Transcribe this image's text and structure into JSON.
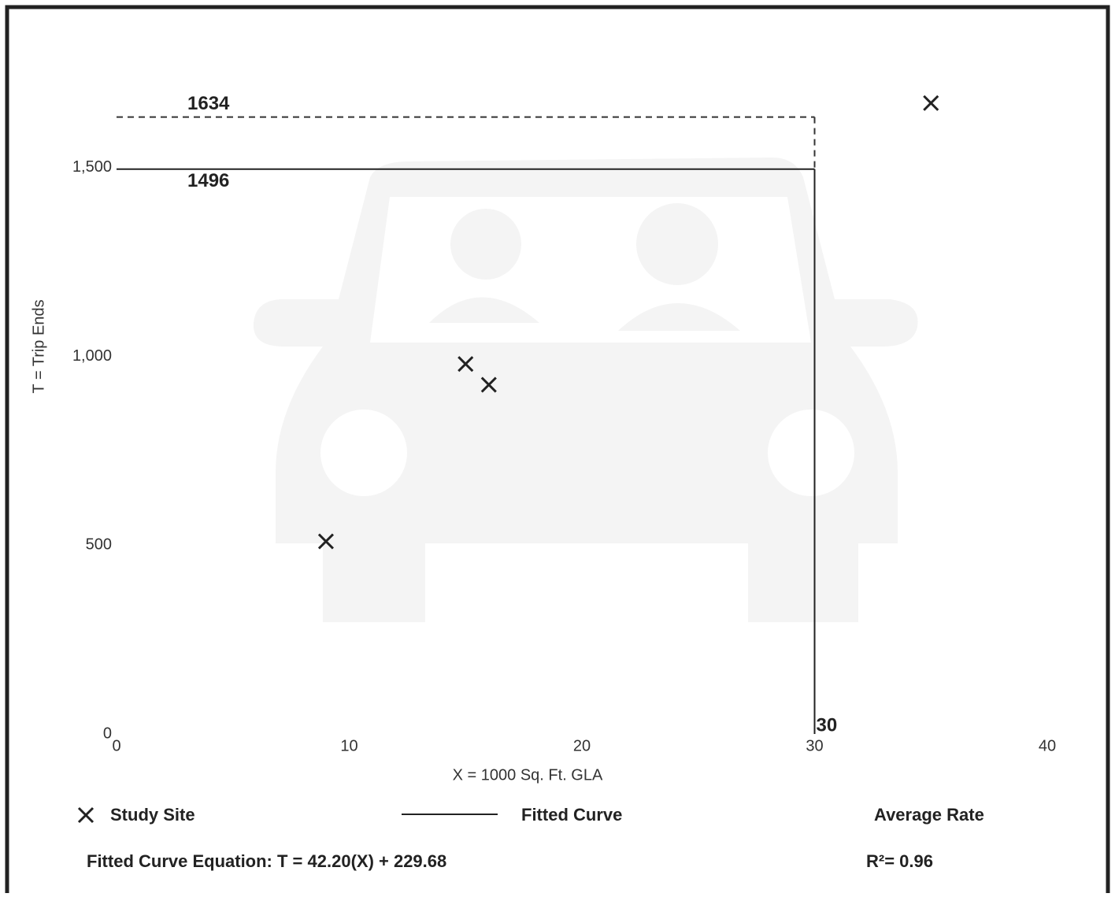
{
  "chart_data": {
    "type": "scatter",
    "xlabel": "X = 1000 Sq. Ft. GLA",
    "ylabel": "T = Trip Ends",
    "xlim": [
      0,
      40
    ],
    "ylim": [
      0,
      1750
    ],
    "xticks": [
      0,
      10,
      20,
      30,
      40
    ],
    "yticks": [
      0,
      500,
      {
        "value": 1000,
        "label": "1,000"
      },
      {
        "value": 1500,
        "label": "1,500"
      }
    ],
    "series": [
      {
        "name": "Study Site",
        "color": "#222222",
        "x": [
          9,
          15,
          16,
          35
        ],
        "values": [
          510,
          980,
          925,
          1671
        ]
      }
    ],
    "legend_entries": [
      "Fitted Curve",
      "Average Rate"
    ],
    "reference_lines": {
      "x": 30,
      "y": [
        1634,
        1496
      ]
    },
    "equation": "Fitted Curve Equation: T = 42.20(X) + 229.68",
    "r_squared": "R²= 0.96"
  }
}
